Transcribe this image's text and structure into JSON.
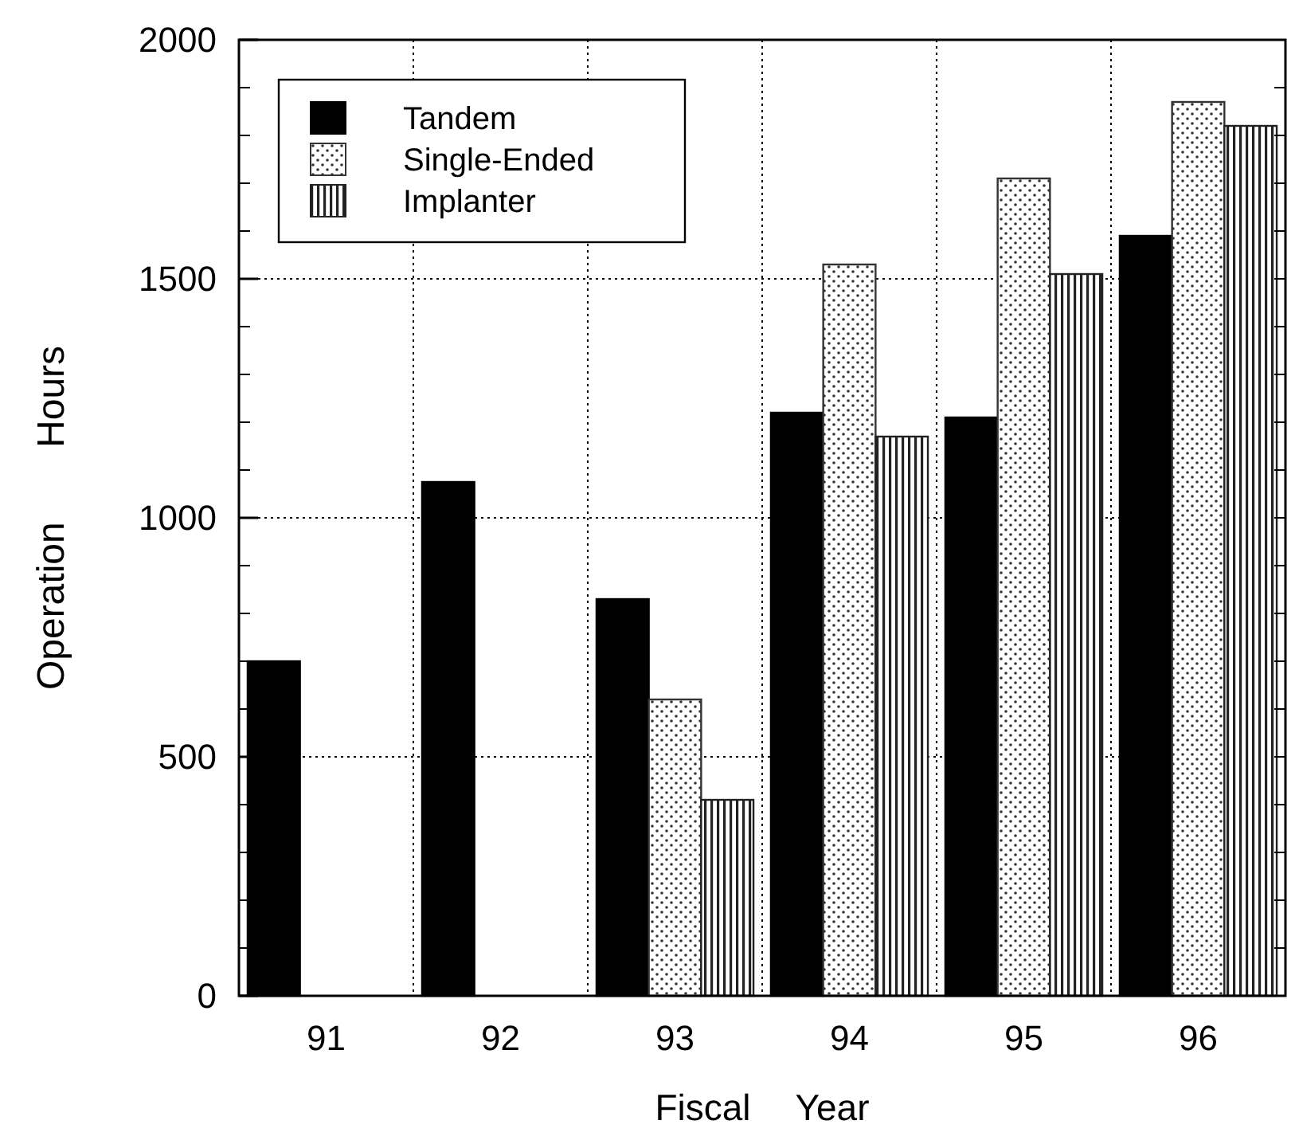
{
  "chart_data": {
    "type": "bar",
    "xlabel": "Fiscal Year",
    "ylabel": "Operation Hours",
    "categories": [
      "91",
      "92",
      "93",
      "94",
      "95",
      "96"
    ],
    "series": [
      {
        "name": "Tandem",
        "color": "#000000",
        "values": [
          700,
          1075,
          830,
          1220,
          1210,
          1590
        ]
      },
      {
        "name": "Single-Ended",
        "color": "#333333",
        "values": [
          null,
          null,
          620,
          1530,
          1710,
          1870
        ]
      },
      {
        "name": "Implanter",
        "color": "#222222",
        "values": [
          null,
          null,
          410,
          1170,
          1510,
          1820
        ]
      }
    ],
    "ylim": [
      0,
      2000
    ],
    "yticks": [
      0,
      500,
      1000,
      1500,
      2000
    ],
    "grid": true,
    "legend": "top left"
  }
}
